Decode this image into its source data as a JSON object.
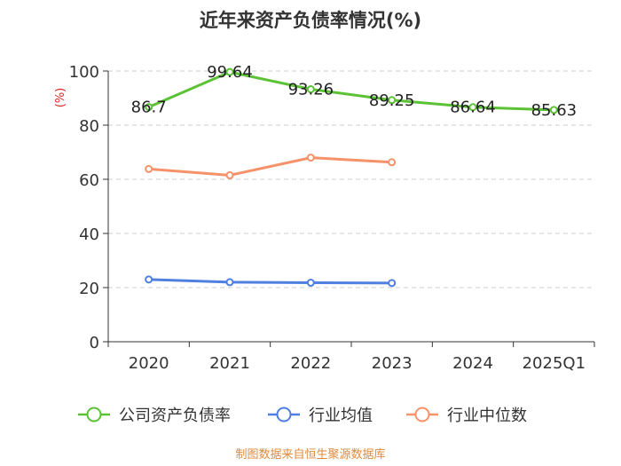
{
  "chart_data": {
    "type": "line",
    "title": "近年来资产负债率情况(%)",
    "ylabel": "(%)",
    "xlabel": "",
    "ylim": [
      0,
      100
    ],
    "yticks": [
      0,
      20,
      40,
      60,
      80,
      100
    ],
    "grid": true,
    "legend_position": "bottom",
    "categories": [
      "2020",
      "2021",
      "2022",
      "2023",
      "2024",
      "2025Q1"
    ],
    "series": [
      {
        "name": "公司资产负债率",
        "color": "#5bc236",
        "values": [
          86.7,
          99.64,
          93.26,
          89.25,
          86.64,
          85.63
        ],
        "labels": [
          "86.7",
          "99.64",
          "93.26",
          "89.25",
          "86.64",
          "85.63"
        ],
        "show_labels": true
      },
      {
        "name": "行业均值",
        "color": "#4f7fe0",
        "values": [
          23.0,
          22.0,
          21.8,
          21.7,
          null,
          null
        ],
        "show_labels": false
      },
      {
        "name": "行业中位数",
        "color": "#f5926a",
        "values": [
          63.8,
          61.5,
          68.0,
          66.3,
          null,
          null
        ],
        "show_labels": false
      }
    ],
    "source": "制图数据来自恒生聚源数据库"
  }
}
